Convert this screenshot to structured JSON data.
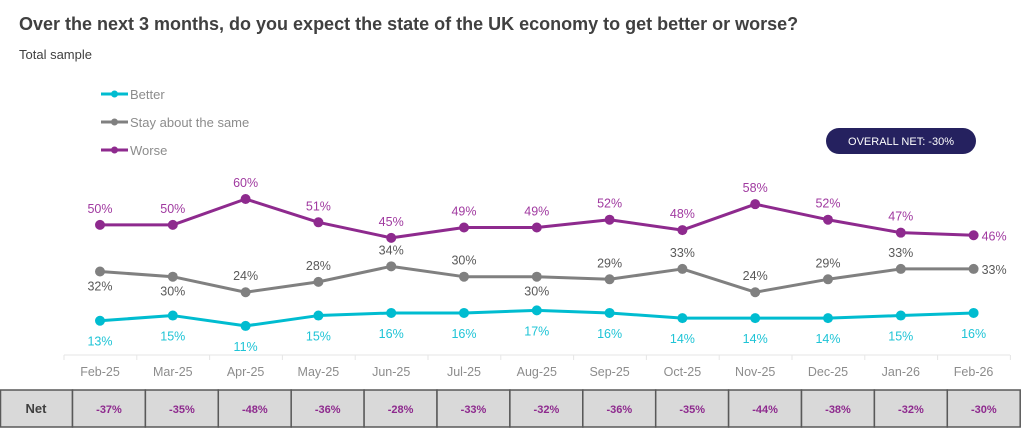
{
  "chart_data": {
    "type": "line",
    "title": "Over the next 3 months, do you expect the state of the UK economy to get better or worse?",
    "subtitle": "Total sample",
    "categories": [
      "Feb-25",
      "Mar-25",
      "Apr-25",
      "May-25",
      "Jun-25",
      "Jul-25",
      "Aug-25",
      "Sep-25",
      "Oct-25",
      "Nov-25",
      "Dec-25",
      "Jan-26",
      "Feb-26"
    ],
    "series": [
      {
        "name": "Better",
        "color": "#00bcd0",
        "values": [
          13,
          15,
          11,
          15,
          16,
          16,
          17,
          16,
          14,
          14,
          14,
          15,
          16
        ]
      },
      {
        "name": "Stay about the same",
        "color": "#808080",
        "values": [
          32,
          30,
          24,
          28,
          34,
          30,
          30,
          29,
          33,
          24,
          29,
          33,
          33
        ]
      },
      {
        "name": "Worse",
        "color": "#8e2a8e",
        "values": [
          50,
          50,
          60,
          51,
          45,
          49,
          49,
          52,
          48,
          58,
          52,
          47,
          46
        ]
      }
    ],
    "value_suffix": "%",
    "grid": false,
    "legend_placement": "top-left",
    "badge": {
      "text": "OVERALL NET: -30%",
      "color": "#25215f"
    },
    "net_table": {
      "header": "Net",
      "values": [
        "-37%",
        "-35%",
        "-48%",
        "-36%",
        "-28%",
        "-33%",
        "-32%",
        "-36%",
        "-35%",
        "-44%",
        "-38%",
        "-32%",
        "-30%"
      ]
    }
  }
}
